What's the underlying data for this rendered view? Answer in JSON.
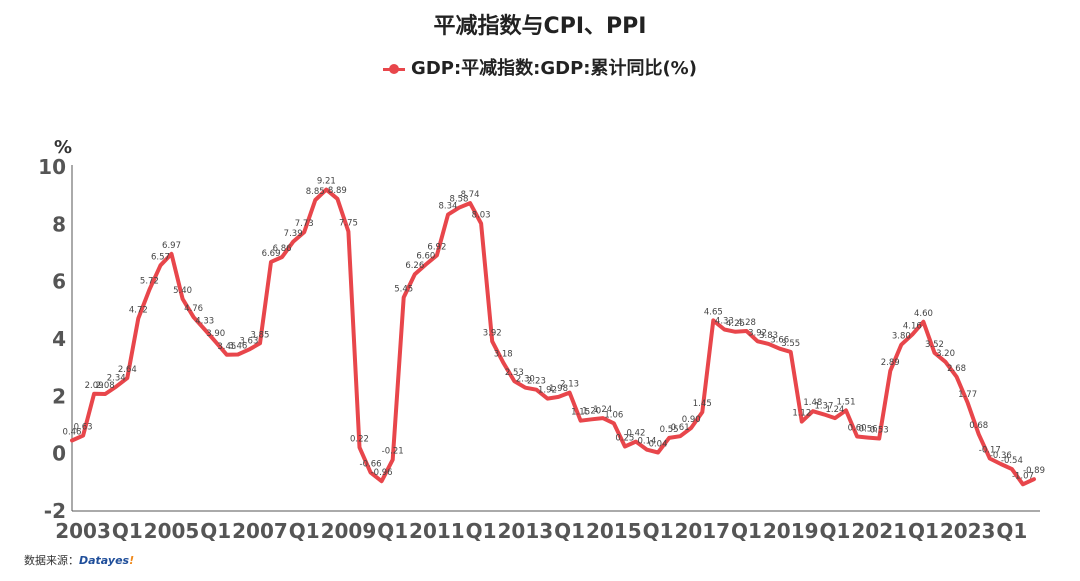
{
  "title": "平减指数与CPI、PPI",
  "legend": [
    {
      "label": "GDP:平减指数:GDP:累计同比(%)",
      "color": "#e8464b"
    }
  ],
  "footer": {
    "prefix": "数据来源：",
    "brand": "Datayes!"
  },
  "chart_data": {
    "type": "line",
    "title": "平减指数与CPI、PPI",
    "ylabel": "%",
    "ylim": [
      -2,
      10
    ],
    "yticks": [
      -2,
      0,
      2,
      4,
      6,
      8,
      10
    ],
    "xtick_labels": [
      "2003",
      "Q1",
      "2005",
      "Q1",
      "2007",
      "Q1",
      "2009",
      "Q1",
      "2011",
      "Q1",
      "2013",
      "Q1",
      "2015",
      "Q1",
      "2017",
      "Q1",
      "2019",
      "Q1",
      "2021",
      "Q1",
      "2023",
      "Q1"
    ],
    "grid": false,
    "series": [
      {
        "name": "GDP:平减指数:GDP:累计同比(%)",
        "color": "#e8464b",
        "values": [
          0.46,
          0.63,
          2.09,
          2.08,
          2.34,
          2.64,
          4.72,
          5.72,
          6.57,
          6.97,
          5.4,
          4.76,
          4.33,
          3.9,
          3.45,
          3.46,
          3.63,
          3.85,
          6.69,
          6.86,
          7.39,
          7.73,
          8.85,
          9.21,
          8.89,
          7.75,
          0.22,
          -0.66,
          -0.96,
          -0.21,
          5.45,
          6.26,
          6.6,
          6.92,
          8.34,
          8.58,
          8.74,
          8.03,
          3.92,
          3.18,
          2.53,
          2.3,
          2.23,
          1.92,
          1.98,
          2.13,
          1.15,
          1.2,
          1.24,
          1.06,
          0.25,
          0.42,
          0.14,
          0.04,
          0.55,
          0.61,
          0.9,
          1.45,
          4.65,
          4.33,
          4.25,
          4.28,
          3.92,
          3.83,
          3.66,
          3.55,
          1.12,
          1.48,
          1.37,
          1.24,
          1.51,
          0.6,
          0.56,
          0.53,
          2.89,
          3.8,
          4.16,
          4.6,
          3.52,
          3.2,
          2.68,
          1.77,
          0.68,
          -0.17,
          -0.36,
          -0.54,
          -1.07,
          -0.89
        ],
        "labels": [
          "0.46",
          "0.63",
          "2.09",
          "2.08",
          "2.34",
          "2.64",
          "4.72",
          "5.72",
          "6.57",
          "6.97",
          "5.40",
          "4.76",
          "4.33",
          "3.90",
          "3.45",
          "3.46",
          "3.63",
          "3.85",
          "6.69",
          "6.86",
          "7.39",
          "7.73",
          "8.85",
          "9.21",
          "8.89",
          "7.75",
          "0.22",
          "-0.66",
          "-0.96",
          "-0.21",
          "5.45",
          "6.26",
          "6.60",
          "6.92",
          "8.34",
          "8.58",
          "8.74",
          "8.03",
          "3.92",
          "3.18",
          "2.53",
          "2.30",
          "2.23",
          "1.92",
          "1.98",
          "2.13",
          "1.15",
          "1.20",
          "1.24",
          "1.06",
          "0.25",
          "0.42",
          "0.14",
          "0.04",
          "0.55",
          "0.61",
          "0.90",
          "1.45",
          "4.65",
          "4.33",
          "4.25",
          "4.28",
          "3.92",
          "3.83",
          "3.66",
          "3.55",
          "1.12",
          "1.48",
          "1.37",
          "1.24",
          "1.51",
          "0.60",
          "0.56",
          "0.53",
          "2.89",
          "3.80",
          "4.16",
          "4.60",
          "3.52",
          "3.20",
          "2.68",
          "1.77",
          "0.68",
          "-0.17",
          "-0.36",
          "-0.54",
          "-1.07",
          "-0.89"
        ]
      }
    ]
  }
}
